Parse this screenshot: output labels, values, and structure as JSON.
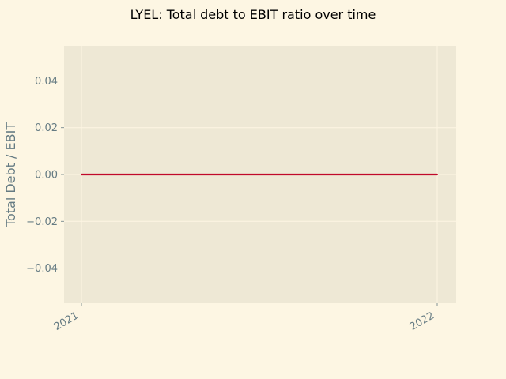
{
  "chart_data": {
    "type": "line",
    "title": "LYEL: Total debt to EBIT ratio over time",
    "xlabel": "",
    "ylabel": "Total Debt / EBIT",
    "x": [
      "2021",
      "2022"
    ],
    "series": [
      {
        "name": "Total Debt / EBIT",
        "values": [
          0.0,
          0.0
        ]
      }
    ],
    "ylim": [
      -0.055,
      0.055
    ],
    "yticks": [
      -0.04,
      -0.02,
      0.0,
      0.02,
      0.04
    ],
    "ytick_labels": [
      "−0.04",
      "−0.02",
      "0.00",
      "0.02",
      "0.04"
    ],
    "xtick_labels": [
      "2021",
      "2022"
    ],
    "grid": true,
    "colors": {
      "background": "#fdf6e3",
      "plot_area": "#eee8d5",
      "grid": "#fdf6e3",
      "line": "#c1092b",
      "tick_text": "#657b83"
    }
  }
}
